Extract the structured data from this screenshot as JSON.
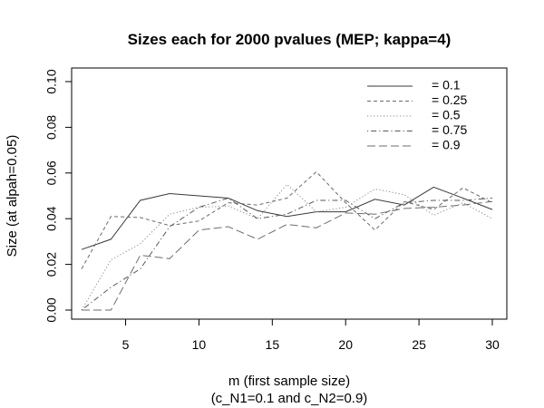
{
  "chart_data": {
    "type": "line",
    "title": "Sizes each for 2000 pvalues (MEP; kappa=4)",
    "xlabel": "m (first sample size)",
    "xlabel2": "(c_N1=0.1 and c_N2=0.9)",
    "ylabel": "Size (at alpah=0.05)",
    "xlim": [
      2,
      30
    ],
    "ylim": [
      0,
      0.1
    ],
    "xticks": [
      5,
      10,
      15,
      20,
      25,
      30
    ],
    "yticks": [
      0.0,
      0.02,
      0.04,
      0.06,
      0.08,
      0.1
    ],
    "ytick_labels": [
      "0.00",
      "0.02",
      "0.04",
      "0.06",
      "0.08",
      "0.10"
    ],
    "legend_position": "top-right",
    "grid": false,
    "x": [
      2,
      4,
      6,
      8,
      10,
      12,
      14,
      16,
      18,
      20,
      22,
      24,
      26,
      28,
      30
    ],
    "series": [
      {
        "name": "= 0.1",
        "line_style": "solid",
        "values": [
          0.0265,
          0.031,
          0.048,
          0.051,
          0.05,
          0.049,
          0.0435,
          0.041,
          0.043,
          0.043,
          0.0485,
          0.046,
          0.0538,
          0.049,
          0.044
        ]
      },
      {
        "name": "= 0.25",
        "line_style": "dashed",
        "values": [
          0.018,
          0.041,
          0.0405,
          0.037,
          0.039,
          0.047,
          0.046,
          0.049,
          0.0605,
          0.047,
          0.035,
          0.0475,
          0.044,
          0.0535,
          0.047
        ]
      },
      {
        "name": "= 0.5",
        "line_style": "dotted",
        "values": [
          0.0,
          0.022,
          0.029,
          0.042,
          0.045,
          0.0455,
          0.04,
          0.055,
          0.043,
          0.045,
          0.053,
          0.0505,
          0.0415,
          0.047,
          0.04
        ]
      },
      {
        "name": "= 0.75",
        "line_style": "dotdash",
        "values": [
          0.0,
          0.01,
          0.018,
          0.0365,
          0.045,
          0.049,
          0.04,
          0.042,
          0.048,
          0.048,
          0.04,
          0.047,
          0.048,
          0.048,
          0.049
        ]
      },
      {
        "name": "= 0.9",
        "line_style": "longdash",
        "values": [
          0.0,
          0.0,
          0.024,
          0.0225,
          0.035,
          0.0365,
          0.031,
          0.0375,
          0.036,
          0.0425,
          0.042,
          0.0445,
          0.045,
          0.046,
          0.0475
        ]
      }
    ]
  }
}
